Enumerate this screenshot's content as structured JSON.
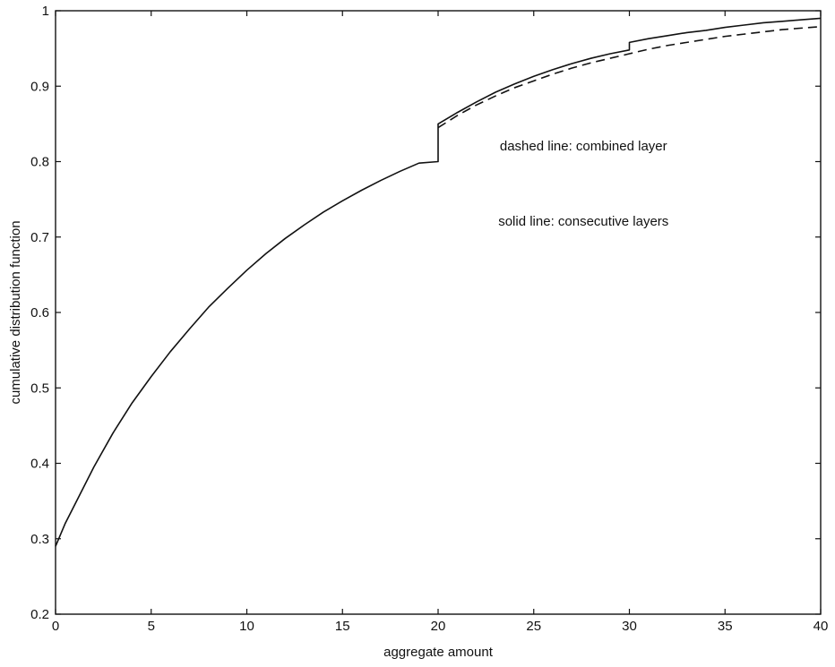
{
  "chart_data": {
    "type": "line",
    "title": "",
    "xlabel": "aggregate amount",
    "ylabel": "cumulative distribution function",
    "xlim": [
      0,
      40
    ],
    "ylim": [
      0.2,
      1
    ],
    "x_ticks": [
      0,
      5,
      10,
      15,
      20,
      25,
      30,
      35,
      40
    ],
    "y_ticks": [
      0.2,
      0.3,
      0.4,
      0.5,
      0.6,
      0.7,
      0.8,
      0.9,
      1
    ],
    "x_tick_labels": [
      "0",
      "5",
      "10",
      "15",
      "20",
      "25",
      "30",
      "35",
      "40"
    ],
    "y_tick_labels": [
      "0.2",
      "0.3",
      "0.4",
      "0.5",
      "0.6",
      "0.7",
      "0.8",
      "0.9",
      "1"
    ],
    "grid": false,
    "series": [
      {
        "style": "solid",
        "color": "#111111",
        "points": [
          [
            0,
            0.29
          ],
          [
            0.5,
            0.32
          ],
          [
            1,
            0.345
          ],
          [
            2,
            0.395
          ],
          [
            3,
            0.44
          ],
          [
            4,
            0.48
          ],
          [
            5,
            0.515
          ],
          [
            6,
            0.548
          ],
          [
            7,
            0.578
          ],
          [
            8,
            0.607
          ],
          [
            9,
            0.632
          ],
          [
            10,
            0.656
          ],
          [
            11,
            0.678
          ],
          [
            12,
            0.698
          ],
          [
            13,
            0.716
          ],
          [
            14,
            0.733
          ],
          [
            15,
            0.748
          ],
          [
            16,
            0.762
          ],
          [
            17,
            0.775
          ],
          [
            18,
            0.787
          ],
          [
            19,
            0.798
          ],
          [
            20,
            0.8
          ],
          [
            20,
            0.85
          ],
          [
            21,
            0.865
          ],
          [
            22,
            0.879
          ],
          [
            23,
            0.892
          ],
          [
            24,
            0.903
          ],
          [
            25,
            0.913
          ],
          [
            26,
            0.922
          ],
          [
            27,
            0.93
          ],
          [
            28,
            0.937
          ],
          [
            29,
            0.943
          ],
          [
            30,
            0.948
          ],
          [
            30,
            0.958
          ],
          [
            31,
            0.963
          ],
          [
            32,
            0.967
          ],
          [
            33,
            0.971
          ],
          [
            34,
            0.974
          ],
          [
            35,
            0.978
          ],
          [
            36,
            0.981
          ],
          [
            37,
            0.984
          ],
          [
            38,
            0.986
          ],
          [
            39,
            0.988
          ],
          [
            40,
            0.99
          ]
        ]
      },
      {
        "style": "dashed",
        "color": "#111111",
        "points": [
          [
            20,
            0.845
          ],
          [
            21,
            0.861
          ],
          [
            22,
            0.875
          ],
          [
            23,
            0.887
          ],
          [
            24,
            0.898
          ],
          [
            25,
            0.907
          ],
          [
            26,
            0.916
          ],
          [
            27,
            0.924
          ],
          [
            28,
            0.931
          ],
          [
            29,
            0.937
          ],
          [
            30,
            0.943
          ],
          [
            31,
            0.949
          ],
          [
            32,
            0.954
          ],
          [
            33,
            0.958
          ],
          [
            34,
            0.962
          ],
          [
            35,
            0.966
          ],
          [
            36,
            0.969
          ],
          [
            37,
            0.972
          ],
          [
            38,
            0.975
          ],
          [
            39,
            0.977
          ],
          [
            40,
            0.979
          ]
        ]
      }
    ],
    "annotations": [
      {
        "text": "dashed line: combined layer",
        "x": 27.6,
        "y": 0.815
      },
      {
        "text": "solid line: consecutive layers",
        "x": 27.6,
        "y": 0.715
      }
    ]
  }
}
